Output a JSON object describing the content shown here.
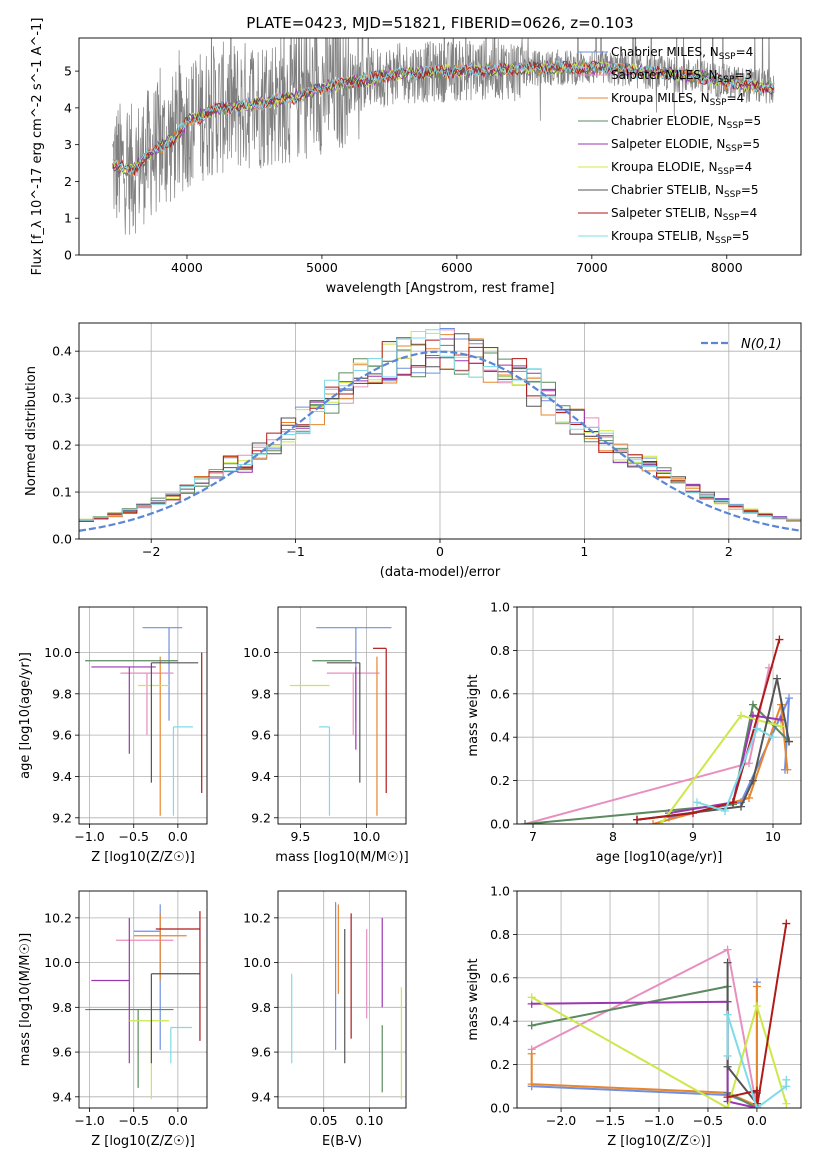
{
  "figure_title": "PLATE=0423, MJD=51821, FIBERID=0626, z=0.103",
  "colors": {
    "Chabrier MILES": "#6f8fe0",
    "Salpeter MILES": "#e88fc0",
    "Kroupa MILES": "#e8862e",
    "Chabrier ELODIE": "#5b8a5e",
    "Salpeter ELODIE": "#9b37b0",
    "Kroupa ELODIE": "#cde84a",
    "Chabrier STELIB": "#555555",
    "Salpeter STELIB": "#b01a1a",
    "Kroupa STELIB": "#7fdbe8",
    "data_spectrum": "#808080",
    "normal_curve": "#5b86d6"
  },
  "chart_data": [
    {
      "id": "spectrum",
      "type": "line",
      "xlabel": "wavelength [Angstrom, rest frame]",
      "ylabel": "Flux [f_λ 10^-17 erg cm^-2 s^-1 A^-1]",
      "xlim": [
        3200,
        8550
      ],
      "ylim": [
        0,
        5.9
      ],
      "xticks": [
        4000,
        5000,
        6000,
        7000,
        8000
      ],
      "yticks": [
        0,
        1,
        2,
        3,
        4,
        5
      ],
      "legend_position": "upper right",
      "series": [
        {
          "name": "Chabrier MILES, N_SSP=4",
          "nssp": "4"
        },
        {
          "name": "Salpeter MILES, N_SSP=3",
          "nssp": "3"
        },
        {
          "name": "Kroupa MILES, N_SSP=4",
          "nssp": "4"
        },
        {
          "name": "Chabrier ELODIE, N_SSP=5",
          "nssp": "5"
        },
        {
          "name": "Salpeter ELODIE, N_SSP=5",
          "nssp": "5"
        },
        {
          "name": "Kroupa ELODIE, N_SSP=4",
          "nssp": "4"
        },
        {
          "name": "Chabrier STELIB, N_SSP=5",
          "nssp": "5"
        },
        {
          "name": "Salpeter STELIB, N_SSP=4",
          "nssp": "4"
        },
        {
          "name": "Kroupa STELIB, N_SSP=5",
          "nssp": "5"
        }
      ],
      "continuum": {
        "x": [
          3450,
          3600,
          3700,
          3800,
          3900,
          4000,
          4200,
          4500,
          4800,
          5000,
          5300,
          5600,
          6000,
          6300,
          6600,
          7000,
          7200,
          7500,
          7800,
          8000,
          8200,
          8350
        ],
        "y": [
          2.45,
          2.3,
          2.7,
          2.95,
          3.15,
          3.6,
          3.95,
          4.1,
          4.3,
          4.55,
          4.75,
          4.95,
          5.0,
          5.05,
          5.08,
          5.1,
          5.05,
          4.95,
          4.85,
          4.7,
          4.6,
          4.55
        ]
      }
    },
    {
      "id": "residuals",
      "type": "line",
      "xlabel": "(data-model)/error",
      "ylabel": "Normed distribution",
      "xlim": [
        -2.5,
        2.5
      ],
      "ylim": [
        0,
        0.46
      ],
      "xticks": [
        -2,
        -1,
        0,
        1,
        2
      ],
      "yticks": [
        0.0,
        0.1,
        0.2,
        0.3,
        0.4
      ],
      "grid": true,
      "legend": "N(0,1)",
      "legend_position": "upper right",
      "hist_bins": [
        -2.5,
        -2.4,
        -2.3,
        -2.2,
        -2.1,
        -2.0,
        -1.9,
        -1.8,
        -1.7,
        -1.6,
        -1.5,
        -1.4,
        -1.3,
        -1.2,
        -1.1,
        -1.0,
        -0.9,
        -0.8,
        -0.7,
        -0.6,
        -0.5,
        -0.4,
        -0.3,
        -0.2,
        -0.1,
        0.0,
        0.1,
        0.2,
        0.3,
        0.4,
        0.5,
        0.6,
        0.7,
        0.8,
        0.9,
        1.0,
        1.1,
        1.2,
        1.3,
        1.4,
        1.5,
        1.6,
        1.7,
        1.8,
        1.9,
        2.0,
        2.1,
        2.2,
        2.3,
        2.4,
        2.5
      ]
    },
    {
      "id": "age_vs_Z",
      "type": "scatter",
      "xlabel": "Z [log10(Z/Z☉)]",
      "ylabel": "age [log10(age/yr)]",
      "xlim": [
        -1.12,
        0.33
      ],
      "ylim": [
        9.17,
        10.22
      ],
      "xticks": [
        -1.0,
        -0.5,
        0.0
      ],
      "yticks": [
        9.2,
        9.4,
        9.6,
        9.8,
        10.0
      ],
      "grid": true,
      "points": [
        {
          "series": "Chabrier MILES",
          "x": -0.1,
          "xerr": [
            0.3,
            0.15
          ],
          "y": 10.12,
          "yerr": [
            0.45,
            0.0
          ]
        },
        {
          "series": "Salpeter MILES",
          "x": -0.35,
          "xerr": [
            0.3,
            0.3
          ],
          "y": 9.9,
          "yerr": [
            0.3,
            0.0
          ]
        },
        {
          "series": "Kroupa MILES",
          "x": -0.2,
          "xerr": [
            0.0,
            0.0
          ],
          "y": 9.98,
          "yerr": [
            0.77,
            0.0
          ]
        },
        {
          "series": "Chabrier ELODIE",
          "x": -0.5,
          "xerr": [
            0.55,
            0.5
          ],
          "y": 9.96,
          "yerr": [
            0.0,
            0.0
          ]
        },
        {
          "series": "Salpeter ELODIE",
          "x": -0.55,
          "xerr": [
            0.43,
            0.3
          ],
          "y": 9.93,
          "yerr": [
            0.42,
            0.0
          ]
        },
        {
          "series": "Kroupa ELODIE",
          "x": -0.45,
          "xerr": [
            0.0,
            0.35
          ],
          "y": 9.84,
          "yerr": [
            0.0,
            0.0
          ]
        },
        {
          "series": "Chabrier STELIB",
          "x": -0.3,
          "xerr": [
            0.0,
            0.53
          ],
          "y": 9.95,
          "yerr": [
            0.58,
            0.0
          ]
        },
        {
          "series": "Salpeter STELIB",
          "x": 0.27,
          "xerr": [
            0.0,
            0.0
          ],
          "y": 10.0,
          "yerr": [
            0.68,
            0.0
          ]
        },
        {
          "series": "Kroupa STELIB",
          "x": -0.05,
          "xerr": [
            0.0,
            0.22
          ],
          "y": 9.64,
          "yerr": [
            0.43,
            0.0
          ]
        }
      ]
    },
    {
      "id": "age_vs_mass",
      "type": "scatter",
      "xlabel": "mass [log10(M/M☉)]",
      "ylabel": "",
      "xlim": [
        9.33,
        10.3
      ],
      "ylim": [
        9.17,
        10.22
      ],
      "xticks": [
        9.5,
        10.0
      ],
      "yticks": [
        9.2,
        9.4,
        9.6,
        9.8,
        10.0
      ],
      "grid": true,
      "points": [
        {
          "series": "Chabrier MILES",
          "x": 9.92,
          "xerr": [
            0.3,
            0.27
          ],
          "y": 10.12,
          "yerr": [
            0.45,
            0.0
          ]
        },
        {
          "series": "Salpeter MILES",
          "x": 9.9,
          "xerr": [
            0.2,
            0.2
          ],
          "y": 9.9,
          "yerr": [
            0.3,
            0.0
          ]
        },
        {
          "series": "Kroupa MILES",
          "x": 10.08,
          "xerr": [
            0.0,
            0.0
          ],
          "y": 9.98,
          "yerr": [
            0.77,
            0.0
          ]
        },
        {
          "series": "Chabrier ELODIE",
          "x": 9.79,
          "xerr": [
            0.2,
            0.1
          ],
          "y": 9.96,
          "yerr": [
            0.0,
            0.0
          ]
        },
        {
          "series": "Salpeter ELODIE",
          "x": 9.92,
          "xerr": [
            0.0,
            0.0
          ],
          "y": 9.93,
          "yerr": [
            0.4,
            0.0
          ]
        },
        {
          "series": "Kroupa ELODIE",
          "x": 9.62,
          "xerr": [
            0.2,
            0.1
          ],
          "y": 9.84,
          "yerr": [
            0.0,
            0.0
          ]
        },
        {
          "series": "Chabrier STELIB",
          "x": 9.95,
          "xerr": [
            0.25,
            0.0
          ],
          "y": 9.95,
          "yerr": [
            0.58,
            0.0
          ]
        },
        {
          "series": "Salpeter STELIB",
          "x": 10.15,
          "xerr": [
            0.1,
            0.0
          ],
          "y": 10.02,
          "yerr": [
            0.7,
            0.0
          ]
        },
        {
          "series": "Kroupa STELIB",
          "x": 9.72,
          "xerr": [
            0.08,
            0.0
          ],
          "y": 9.64,
          "yerr": [
            0.43,
            0.0
          ]
        }
      ]
    },
    {
      "id": "massweight_vs_age",
      "type": "line",
      "xlabel": "age [log10(age/yr)]",
      "ylabel": "mass weight",
      "xlim": [
        6.8,
        10.35
      ],
      "ylim": [
        0,
        1.0
      ],
      "xticks": [
        7,
        8,
        9,
        10
      ],
      "yticks": [
        0.0,
        0.2,
        0.4,
        0.6,
        0.8,
        1.0
      ],
      "grid": true,
      "series": [
        {
          "name": "Chabrier MILES",
          "x": [
            8.7,
            9.6,
            10.2,
            10.15
          ],
          "y": [
            0.03,
            0.1,
            0.58,
            0.25
          ]
        },
        {
          "name": "Salpeter MILES",
          "x": [
            6.9,
            9.7,
            9.95
          ],
          "y": [
            0.0,
            0.28,
            0.72
          ]
        },
        {
          "name": "Kroupa MILES",
          "x": [
            8.5,
            9.7,
            10.1,
            10.18
          ],
          "y": [
            0.0,
            0.12,
            0.55,
            0.25
          ]
        },
        {
          "name": "Chabrier ELODIE",
          "x": [
            6.9,
            9.5,
            9.75,
            10.2
          ],
          "y": [
            0.0,
            0.09,
            0.55,
            0.38
          ]
        },
        {
          "name": "Salpeter ELODIE",
          "x": [
            8.7,
            9.5,
            9.75,
            10.1
          ],
          "y": [
            0.05,
            0.1,
            0.5,
            0.48
          ]
        },
        {
          "name": "Kroupa ELODIE",
          "x": [
            8.6,
            9.6,
            10.1
          ],
          "y": [
            0.0,
            0.5,
            0.45
          ]
        },
        {
          "name": "Chabrier STELIB",
          "x": [
            8.3,
            9.6,
            9.75,
            10.05,
            10.2
          ],
          "y": [
            0.02,
            0.08,
            0.2,
            0.67,
            0.38
          ]
        },
        {
          "name": "Salpeter STELIB",
          "x": [
            8.3,
            9.0,
            9.5,
            10.08
          ],
          "y": [
            0.02,
            0.05,
            0.1,
            0.85
          ]
        },
        {
          "name": "Kroupa STELIB",
          "x": [
            9.05,
            9.4,
            9.8,
            10.0
          ],
          "y": [
            0.1,
            0.06,
            0.44,
            0.4
          ]
        }
      ]
    },
    {
      "id": "mass_vs_Z",
      "type": "scatter",
      "xlabel": "Z [log10(Z/Z☉)]",
      "ylabel": "mass [log10(M/M☉)]",
      "xlim": [
        -1.12,
        0.33
      ],
      "ylim": [
        9.35,
        10.32
      ],
      "xticks": [
        -1.0,
        -0.5,
        0.0
      ],
      "yticks": [
        9.4,
        9.6,
        9.8,
        10.0,
        10.2
      ],
      "grid": true,
      "points": [
        {
          "series": "Chabrier MILES",
          "x": -0.2,
          "xerr": [
            0.3,
            0.0
          ],
          "y": 10.14,
          "yerr": [
            0.53,
            0.12
          ]
        },
        {
          "series": "Salpeter MILES",
          "x": -0.35,
          "xerr": [
            0.35,
            0.3
          ],
          "y": 10.1,
          "yerr": [
            0.0,
            0.0
          ]
        },
        {
          "series": "Kroupa MILES",
          "x": -0.2,
          "xerr": [
            0.3,
            0.3
          ],
          "y": 10.12,
          "yerr": [
            0.2,
            0.1
          ]
        },
        {
          "series": "Chabrier ELODIE",
          "x": -0.45,
          "xerr": [
            0.6,
            0.4
          ],
          "y": 9.79,
          "yerr": [
            0.35,
            0.0
          ]
        },
        {
          "series": "Salpeter ELODIE",
          "x": -0.55,
          "xerr": [
            0.43,
            0.0
          ],
          "y": 9.92,
          "yerr": [
            0.37,
            0.28
          ]
        },
        {
          "series": "Kroupa ELODIE",
          "x": -0.3,
          "xerr": [
            0.25,
            0.2
          ],
          "y": 9.74,
          "yerr": [
            0.35,
            0.0
          ]
        },
        {
          "series": "Chabrier STELIB",
          "x": -0.3,
          "xerr": [
            0.0,
            0.55
          ],
          "y": 9.95,
          "yerr": [
            0.4,
            0.0
          ]
        },
        {
          "series": "Salpeter STELIB",
          "x": 0.25,
          "xerr": [
            0.5,
            0.0
          ],
          "y": 10.15,
          "yerr": [
            0.5,
            0.08
          ]
        },
        {
          "series": "Kroupa STELIB",
          "x": -0.08,
          "xerr": [
            0.0,
            0.24
          ],
          "y": 9.71,
          "yerr": [
            0.16,
            0.0
          ]
        }
      ]
    },
    {
      "id": "mass_vs_EBV",
      "type": "scatter",
      "xlabel": "E(B-V)",
      "ylabel": "",
      "xlim": [
        0.0,
        0.14
      ],
      "ylim": [
        9.35,
        10.32
      ],
      "xticks": [
        0.05,
        0.1
      ],
      "yticks": [
        9.4,
        9.6,
        9.8,
        10.0,
        10.2
      ],
      "grid": true,
      "points": [
        {
          "series": "Chabrier MILES",
          "x": 0.063,
          "y": 9.94,
          "yerr": [
            0.33,
            0.33
          ]
        },
        {
          "series": "Salpeter MILES",
          "x": 0.097,
          "y": 9.95,
          "yerr": [
            0.2,
            0.2
          ]
        },
        {
          "series": "Kroupa MILES",
          "x": 0.066,
          "y": 10.06,
          "yerr": [
            0.2,
            0.2
          ]
        },
        {
          "series": "Chabrier ELODIE",
          "x": 0.114,
          "y": 9.72,
          "yerr": [
            0.3,
            0.0
          ]
        },
        {
          "series": "Salpeter ELODIE",
          "x": 0.114,
          "y": 10.0,
          "yerr": [
            0.2,
            0.2
          ]
        },
        {
          "series": "Kroupa ELODIE",
          "x": 0.135,
          "y": 9.64,
          "yerr": [
            0.25,
            0.25
          ]
        },
        {
          "series": "Chabrier STELIB",
          "x": 0.073,
          "y": 9.85,
          "yerr": [
            0.3,
            0.3
          ]
        },
        {
          "series": "Salpeter STELIB",
          "x": 0.08,
          "y": 9.94,
          "yerr": [
            0.28,
            0.28
          ]
        },
        {
          "series": "Kroupa STELIB",
          "x": 0.015,
          "y": 9.75,
          "yerr": [
            0.2,
            0.2
          ]
        }
      ]
    },
    {
      "id": "massweight_vs_Z",
      "type": "line",
      "xlabel": "Z [log10(Z/Z☉)]",
      "ylabel": "mass weight",
      "xlim": [
        -2.45,
        0.45
      ],
      "ylim": [
        0,
        1.0
      ],
      "xticks": [
        -2.0,
        -1.5,
        -1.0,
        -0.5,
        0.0
      ],
      "yticks": [
        0.0,
        0.2,
        0.4,
        0.6,
        0.8,
        1.0
      ],
      "grid": true,
      "series": [
        {
          "name": "Chabrier MILES",
          "x": [
            -2.3,
            -0.3,
            0.0,
            0.0
          ],
          "y": [
            0.1,
            0.06,
            0.01,
            0.58
          ]
        },
        {
          "name": "Salpeter MILES",
          "x": [
            -2.3,
            -0.3,
            0.0
          ],
          "y": [
            0.27,
            0.73,
            0.0
          ]
        },
        {
          "name": "Kroupa MILES",
          "x": [
            -2.3,
            -2.3,
            -0.3,
            0.0,
            0.0
          ],
          "y": [
            0.25,
            0.11,
            0.07,
            0.01,
            0.56
          ]
        },
        {
          "name": "Chabrier ELODIE",
          "x": [
            -2.3,
            -0.3,
            -0.3,
            0.0
          ],
          "y": [
            0.38,
            0.56,
            0.07,
            0.0
          ]
        },
        {
          "name": "Salpeter ELODIE",
          "x": [
            -2.3,
            -0.3,
            -0.3,
            0.0
          ],
          "y": [
            0.48,
            0.49,
            0.03,
            0.0
          ]
        },
        {
          "name": "Kroupa ELODIE",
          "x": [
            -2.3,
            -0.3,
            0.0,
            0.3
          ],
          "y": [
            0.51,
            0.0,
            0.47,
            0.02
          ]
        },
        {
          "name": "Chabrier STELIB",
          "x": [
            -0.3,
            -0.3,
            0.0,
            0.0
          ],
          "y": [
            0.67,
            0.19,
            0.02,
            0.07
          ]
        },
        {
          "name": "Salpeter STELIB",
          "x": [
            -0.3,
            0.0,
            0.0,
            0.3
          ],
          "y": [
            0.05,
            0.08,
            0.0,
            0.85
          ]
        },
        {
          "name": "Kroupa STELIB",
          "x": [
            -0.3,
            -0.3,
            0.0,
            0.3,
            0.3
          ],
          "y": [
            0.24,
            0.43,
            0.0,
            0.1,
            0.13
          ]
        }
      ]
    }
  ]
}
